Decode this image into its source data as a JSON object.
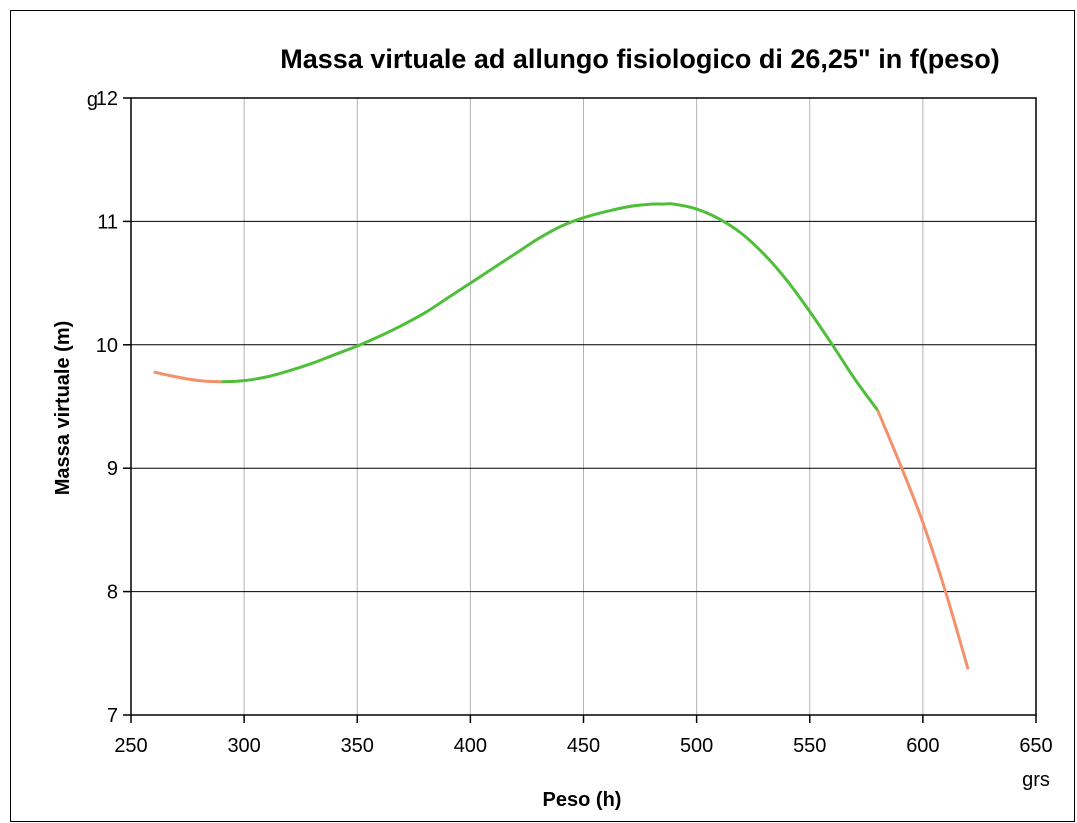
{
  "chart_data": {
    "type": "line",
    "title": "Massa virtuale ad allungo fisiologico di 26,25\" in f(peso)",
    "xlabel": "Peso (h)",
    "ylabel": "Massa virtuale (m)",
    "x_unit": "grs",
    "y_unit": "g",
    "xlim": [
      250,
      650
    ],
    "ylim": [
      7,
      12
    ],
    "x_ticks": [
      250,
      300,
      350,
      400,
      450,
      500,
      550,
      600,
      650
    ],
    "y_ticks": [
      7,
      8,
      9,
      10,
      11,
      12
    ],
    "x_tick_labels": [
      "250",
      "300",
      "350",
      "400",
      "450",
      "500",
      "550",
      "600",
      "650"
    ],
    "y_tick_labels": [
      "7",
      "8",
      "9",
      "10",
      "11",
      "12"
    ],
    "grid": true,
    "legend": "none",
    "series": [
      {
        "color": "#f4906b",
        "x": [
          260,
          270,
          280,
          290
        ],
        "y": [
          9.78,
          9.74,
          9.71,
          9.7
        ]
      },
      {
        "color": "#4fbf3a",
        "x": [
          290,
          300,
          310,
          320,
          330,
          340,
          350,
          360,
          370,
          380,
          390,
          400,
          410,
          420,
          430,
          440,
          450,
          460,
          470,
          480,
          485,
          490,
          500,
          510,
          520,
          530,
          540,
          550,
          560,
          570,
          580
        ],
        "y": [
          9.7,
          9.71,
          9.74,
          9.79,
          9.85,
          9.92,
          9.99,
          10.07,
          10.16,
          10.26,
          10.38,
          10.5,
          10.62,
          10.74,
          10.86,
          10.96,
          11.03,
          11.08,
          11.12,
          11.14,
          11.14,
          11.14,
          11.1,
          11.02,
          10.9,
          10.73,
          10.52,
          10.27,
          10.0,
          9.72,
          9.47
        ]
      },
      {
        "color": "#f4906b",
        "x": [
          580,
          590,
          600,
          610,
          620
        ],
        "y": [
          9.47,
          9.03,
          8.56,
          8.0,
          7.37
        ]
      }
    ]
  }
}
